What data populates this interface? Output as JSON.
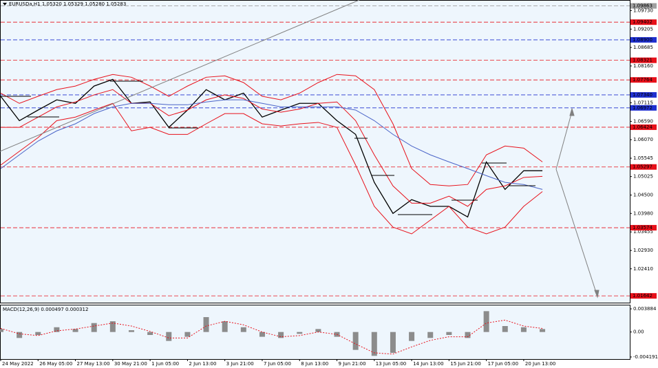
{
  "chart_data": [
    {
      "type": "line",
      "title": "EURUSDa,H1  1.05320 1.05329 1.05280 1.05283",
      "categories": [
        "24 May 2022",
        null,
        "26 May 05:00",
        null,
        "27 May 13:00",
        null,
        "30 May 21:00",
        null,
        "1 Jun 05:00",
        null,
        "2 Jun 13:00",
        null,
        "3 Jun 21:00",
        null,
        "7 Jun 05:00",
        null,
        "8 Jun 13:00",
        null,
        "9 Jun 21:00",
        null,
        "13 Jun 05:00",
        null,
        "14 Jun 13:00",
        null,
        "15 Jun 21:00",
        null,
        "17 Jun 05:00",
        null,
        "20 Jun 13:00",
        null
      ],
      "series": [
        {
          "color": "#000000",
          "values": [
            1.073,
            1.0661,
            1.0691,
            1.072,
            1.071,
            1.0759,
            1.0778,
            1.071,
            1.0714,
            1.0642,
            1.0691,
            1.0749,
            1.072,
            1.0739,
            1.0671,
            1.0691,
            1.071,
            1.071,
            1.0661,
            1.0622,
            1.0486,
            1.0398,
            1.0437,
            1.0418,
            1.0418,
            1.0388,
            1.0544,
            1.0466,
            1.0519,
            1.0519
          ]
        },
        {
          "color": "#e8101a",
          "values": [
            1.0739,
            1.071,
            1.073,
            1.0749,
            1.0759,
            1.0778,
            1.0792,
            1.0784,
            1.0759,
            1.073,
            1.0759,
            1.0784,
            1.0788,
            1.0769,
            1.073,
            1.072,
            1.0739,
            1.0769,
            1.0792,
            1.0788,
            1.0749,
            1.0652,
            1.0525,
            1.048,
            1.0476,
            1.048,
            1.0564,
            1.0589,
            1.0583,
            1.0544
          ]
        },
        {
          "color": "#e8101a",
          "values": [
            1.0642,
            1.0642,
            1.0671,
            1.07,
            1.0714,
            1.0734,
            1.0749,
            1.071,
            1.071,
            1.0675,
            1.0691,
            1.072,
            1.0734,
            1.0724,
            1.0694,
            1.0685,
            1.0694,
            1.071,
            1.0714,
            1.0661,
            1.0564,
            1.0476,
            1.0427,
            1.0427,
            1.0447,
            1.0418,
            1.0466,
            1.0476,
            1.05,
            1.0503
          ]
        },
        {
          "color": "#e8101a",
          "values": [
            1.0535,
            1.0574,
            1.0613,
            1.0661,
            1.0671,
            1.0691,
            1.071,
            1.0632,
            1.0642,
            1.0622,
            1.0622,
            1.0652,
            1.0681,
            1.0681,
            1.0652,
            1.0646,
            1.0652,
            1.0656,
            1.0642,
            1.0535,
            1.0418,
            1.0359,
            1.034,
            1.0379,
            1.0418,
            1.0359,
            1.034,
            1.0359,
            1.0418,
            1.046
          ]
        },
        {
          "color": "#4a64c8",
          "values": [
            1.0525,
            1.0564,
            1.0603,
            1.0632,
            1.0652,
            1.0681,
            1.07,
            1.071,
            1.071,
            1.0706,
            1.0706,
            1.0714,
            1.072,
            1.072,
            1.071,
            1.07,
            1.07,
            1.07,
            1.07,
            1.0691,
            1.0661,
            1.0622,
            1.0589,
            1.0564,
            1.0544,
            1.0525,
            1.0505,
            1.0486,
            1.048,
            1.0466
          ]
        }
      ],
      "ylim": [
        1.0145,
        1.1003
      ],
      "yticks": [
        {
          "value": 1.0973,
          "label": "1.09730"
        },
        1.09205,
        1.08685,
        {
          "value": 1.0816,
          "label": "1.08160"
        },
        1.07115,
        {
          "value": 1.0659,
          "label": "1.06590"
        },
        {
          "value": 1.0607,
          "label": "1.06070"
        },
        1.05545,
        1.05025,
        {
          "value": 1.045,
          "label": "1.04500"
        },
        {
          "value": 1.0398,
          "label": "1.03980"
        },
        1.03455,
        {
          "value": 1.0293,
          "label": "1.02930"
        },
        {
          "value": 1.0241,
          "label": "1.02410"
        }
      ],
      "levels": [
        {
          "value": 1.09863,
          "color": "#a0a0a0"
        },
        {
          "value": 1.09402,
          "color": "#e8101a"
        },
        {
          "value": 1.089,
          "label": "1.08900",
          "color": "#2030d0"
        },
        {
          "value": 1.08321,
          "color": "#e8101a"
        },
        {
          "value": 1.07764,
          "color": "#e8101a"
        },
        {
          "value": 1.0734,
          "label": "1.07340",
          "color": "#2030d0"
        },
        {
          "value": 1.06972,
          "color": "#2030d0"
        },
        {
          "value": 1.06424,
          "color": "#e8101a"
        },
        {
          "value": 1.05297,
          "color": "#e8101a"
        },
        {
          "value": 1.03574,
          "color": "#e8101a"
        },
        {
          "value": 1.01642,
          "color": "#e8101a"
        }
      ]
    },
    {
      "type": "bar",
      "title": "MACD(12,26,9) 0.000497 0.000312",
      "series": [
        {
          "color": "#8c8c8c",
          "values": [
            0.0005,
            -0.001,
            -0.0005,
            0.0008,
            0.0005,
            0.0015,
            0.0018,
            0.0003,
            -0.0005,
            -0.0015,
            -0.0008,
            0.0025,
            0.0018,
            0.0008,
            -0.0008,
            -0.001,
            -0.0003,
            0.0005,
            -0.0008,
            -0.003,
            -0.004,
            -0.0035,
            -0.0015,
            -0.001,
            -0.0005,
            -0.001,
            0.0035,
            0.001,
            0.0008,
            0.0005
          ]
        },
        {
          "color": "#e8101a",
          "values": [
            0.0006,
            -0.0003,
            -0.0006,
            0.0002,
            0.0005,
            0.001,
            0.0015,
            0.001,
            0.0001,
            -0.001,
            -0.001,
            0.001,
            0.0018,
            0.0012,
            0,
            -0.0008,
            -0.0006,
            0,
            -0.0004,
            -0.002,
            -0.0035,
            -0.0037,
            -0.0025,
            -0.0014,
            -0.0008,
            -0.0008,
            0.0015,
            0.002,
            0.001,
            0.0006
          ]
        }
      ],
      "ylim": [
        -0.00454,
        0.00458
      ],
      "yticks": [
        0.003884,
        {
          "value": 0,
          "label": "0.00"
        },
        -0.004191
      ]
    }
  ]
}
